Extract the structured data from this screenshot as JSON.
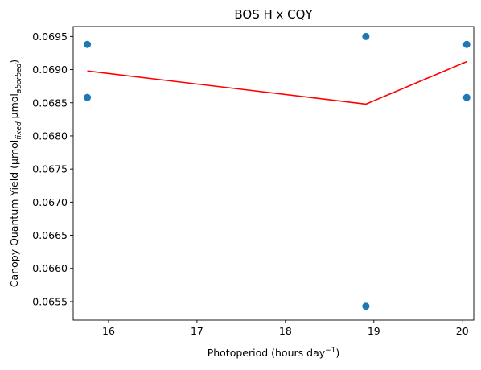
{
  "chart_data": {
    "type": "scatter",
    "title": "BOS H x CQY",
    "xlabel": {
      "main": "Photoperiod (hours day",
      "sup": "−1",
      "end": ")"
    },
    "ylabel": {
      "main": "Canopy Quantum Yield (μmol",
      "sub1": "fixed",
      "mid": " μmol",
      "sub2": "aborbed",
      "end": ")"
    },
    "xlim": [
      15.6,
      20.13
    ],
    "ylim": [
      0.06522,
      0.06965
    ],
    "xticks": [
      {
        "value": 16,
        "label": "16"
      },
      {
        "value": 17,
        "label": "17"
      },
      {
        "value": 18,
        "label": "18"
      },
      {
        "value": 19,
        "label": "19"
      },
      {
        "value": 20,
        "label": "20"
      }
    ],
    "yticks": [
      {
        "value": 0.0655,
        "label": "0.0655"
      },
      {
        "value": 0.066,
        "label": "0.0660"
      },
      {
        "value": 0.0665,
        "label": "0.0665"
      },
      {
        "value": 0.067,
        "label": "0.0670"
      },
      {
        "value": 0.0675,
        "label": "0.0675"
      },
      {
        "value": 0.068,
        "label": "0.0680"
      },
      {
        "value": 0.0685,
        "label": "0.0685"
      },
      {
        "value": 0.069,
        "label": "0.0690"
      },
      {
        "value": 0.0695,
        "label": "0.0695"
      }
    ],
    "scatter": {
      "color": "#1f77b4",
      "points": [
        {
          "x": 15.76,
          "y": 0.06938
        },
        {
          "x": 15.76,
          "y": 0.06858
        },
        {
          "x": 18.91,
          "y": 0.0695
        },
        {
          "x": 18.91,
          "y": 0.06543
        },
        {
          "x": 20.05,
          "y": 0.06938
        },
        {
          "x": 20.05,
          "y": 0.06858
        }
      ]
    },
    "line": {
      "color": "#ff0000",
      "points": [
        {
          "x": 15.76,
          "y": 0.06898
        },
        {
          "x": 18.91,
          "y": 0.06848
        },
        {
          "x": 20.05,
          "y": 0.06912
        }
      ]
    },
    "grid": false,
    "legend": false
  }
}
